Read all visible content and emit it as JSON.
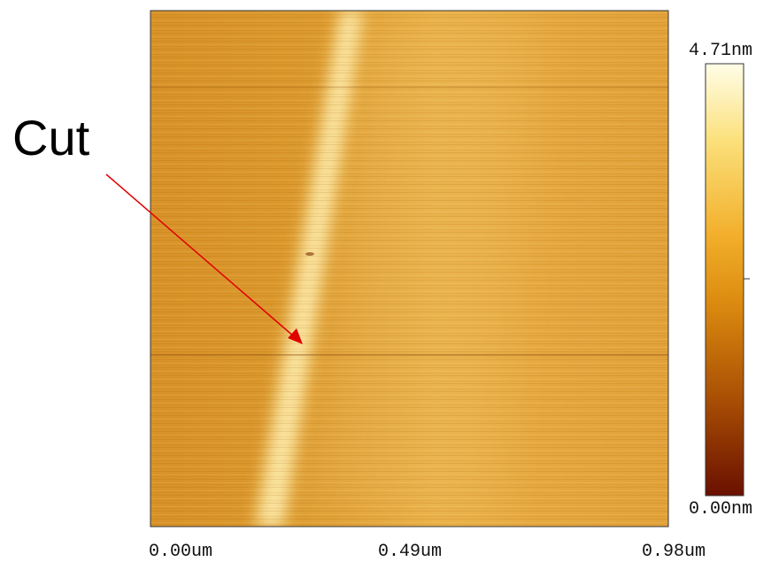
{
  "annotation": "Cut",
  "colorbar": {
    "max_label": "4.71nm",
    "min_label": "0.00nm"
  },
  "x_axis": {
    "labels": [
      "0.00um",
      "0.49um",
      "0.98um"
    ]
  }
}
